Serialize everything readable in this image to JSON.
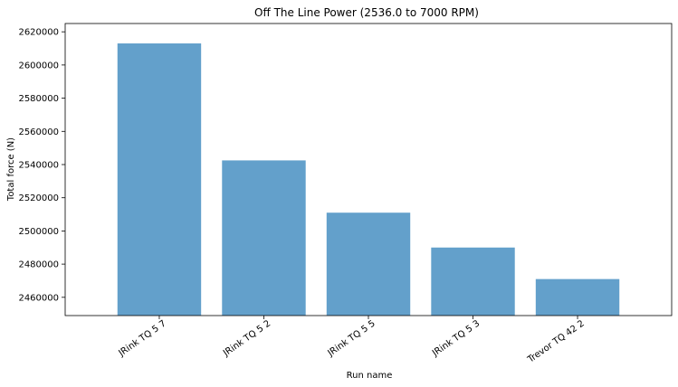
{
  "chart_data": {
    "type": "bar",
    "title": "Off The Line Power (2536.0 to 7000 RPM)",
    "xlabel": "Run name",
    "ylabel": "Total force (N)",
    "categories": [
      "JRink TQ 5 7",
      "JRink TQ 5 2",
      "JRink TQ 5 5",
      "JRink TQ 5 3",
      "Trevor TQ 42 2"
    ],
    "values": [
      2613000,
      2542500,
      2511000,
      2490000,
      2471000
    ],
    "ylim": [
      2449000,
      2625000
    ],
    "yticks": [
      2460000,
      2480000,
      2500000,
      2520000,
      2540000,
      2560000,
      2580000,
      2600000,
      2620000
    ],
    "ytick_labels": [
      "2460000",
      "2480000",
      "2500000",
      "2520000",
      "2540000",
      "2560000",
      "2580000",
      "2600000",
      "2620000"
    ],
    "bar_color": "#63a0cb",
    "grid": false,
    "xtick_rotation_deg": 35
  }
}
